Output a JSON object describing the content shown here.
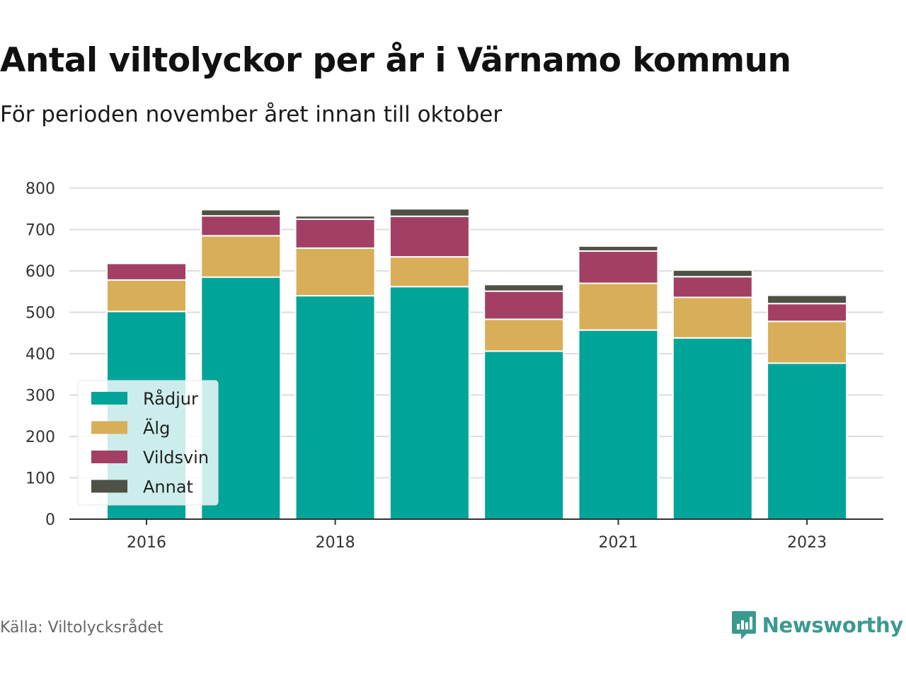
{
  "title": "Antal viltolyckor per år i Värnamo kommun",
  "subtitle": "För perioden november året innan till oktober",
  "source": "Källa: Viltolycksrådet",
  "brand": "Newsworthy",
  "colors": {
    "radjur": "#00a499",
    "alg": "#d9ae58",
    "vildsvin": "#a33f64",
    "annat": "#4f5145",
    "brand": "#3b9a8f",
    "grid": "#dddddd",
    "axis": "#333333"
  },
  "chart_data": {
    "type": "bar",
    "stacked": true,
    "categories": [
      "2016",
      "2017",
      "2018",
      "2019",
      "2020",
      "2021",
      "2022",
      "2023"
    ],
    "x_tick_labels": [
      "2016",
      "",
      "2018",
      "",
      "",
      "2021",
      "",
      "2023"
    ],
    "series": [
      {
        "name": "Rådjur",
        "color": "#00a499",
        "values": [
          502,
          585,
          540,
          562,
          406,
          457,
          438,
          377
        ]
      },
      {
        "name": "Älg",
        "color": "#d9ae58",
        "values": [
          76,
          100,
          115,
          72,
          77,
          113,
          98,
          101
        ]
      },
      {
        "name": "Vildsvin",
        "color": "#a33f64",
        "values": [
          40,
          48,
          70,
          98,
          68,
          78,
          50,
          43
        ]
      },
      {
        "name": "Annat",
        "color": "#4f5145",
        "values": [
          0,
          15,
          8,
          18,
          16,
          12,
          16,
          20
        ]
      }
    ],
    "y_ticks": [
      0,
      100,
      200,
      300,
      400,
      500,
      600,
      700,
      800
    ],
    "ylim": [
      0,
      800
    ],
    "grid": true,
    "legend_position": "bottom-left"
  }
}
